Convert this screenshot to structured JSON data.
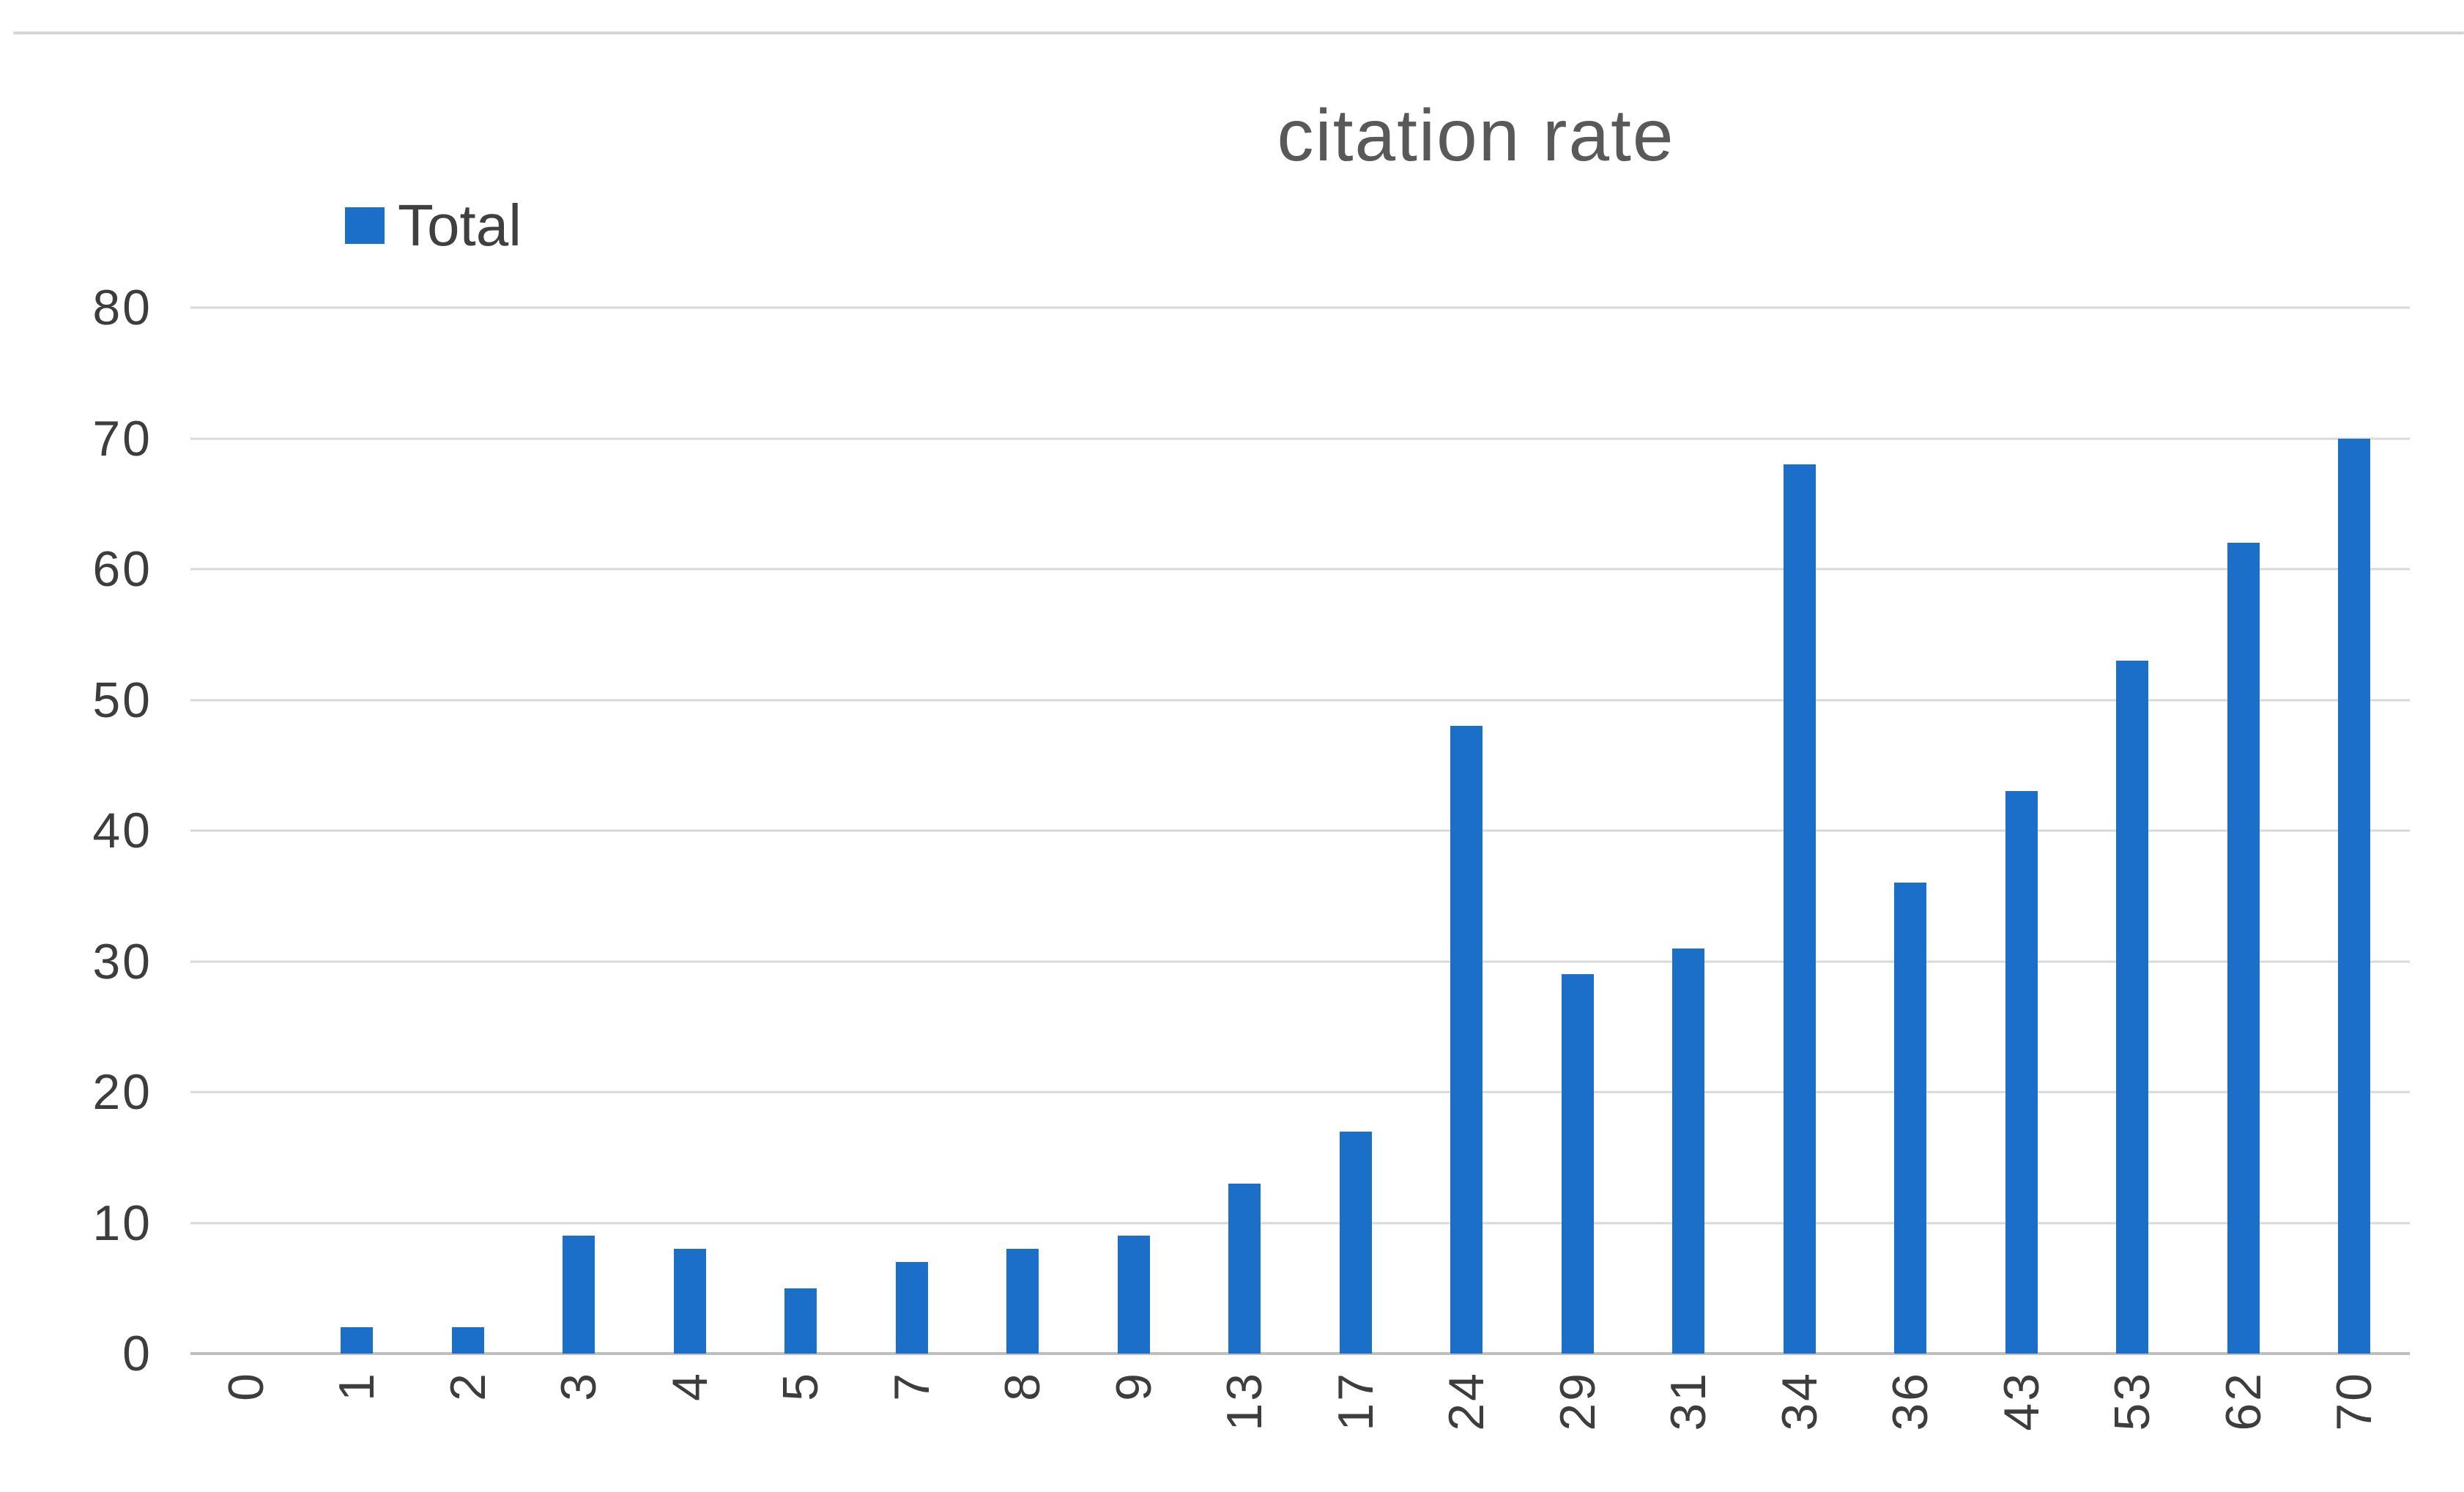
{
  "page": {
    "background": "#FFFFFF"
  },
  "decor": {
    "top_rule_color": "#D6D6D6"
  },
  "chart_data": {
    "type": "bar",
    "title": "citation rate",
    "categories": [
      "0",
      "1",
      "2",
      "3",
      "4",
      "5",
      "7",
      "8",
      "9",
      "13",
      "17",
      "24",
      "29",
      "31",
      "34",
      "36",
      "43",
      "53",
      "62",
      "70"
    ],
    "series": [
      {
        "name": "Total",
        "values": [
          0,
          2,
          2,
          9,
          8,
          5,
          7,
          8,
          9,
          13,
          17,
          48,
          29,
          31,
          68,
          36,
          43,
          53,
          62,
          70
        ]
      }
    ],
    "xlabel": "",
    "ylabel": "",
    "ylim": [
      0,
      80
    ],
    "yticks": [
      0,
      10,
      20,
      30,
      40,
      50,
      60,
      70,
      80
    ],
    "grid": "horizontal",
    "legend_position": "top-left",
    "x_tick_rotation_deg": 90,
    "colors": {
      "bar": "#1B6FC8",
      "gridline": "#D9D9D9",
      "axis_line": "#BFBFBF",
      "tick_label": "#3D3D3D",
      "title": "#595959",
      "legend_text": "#404040"
    }
  }
}
